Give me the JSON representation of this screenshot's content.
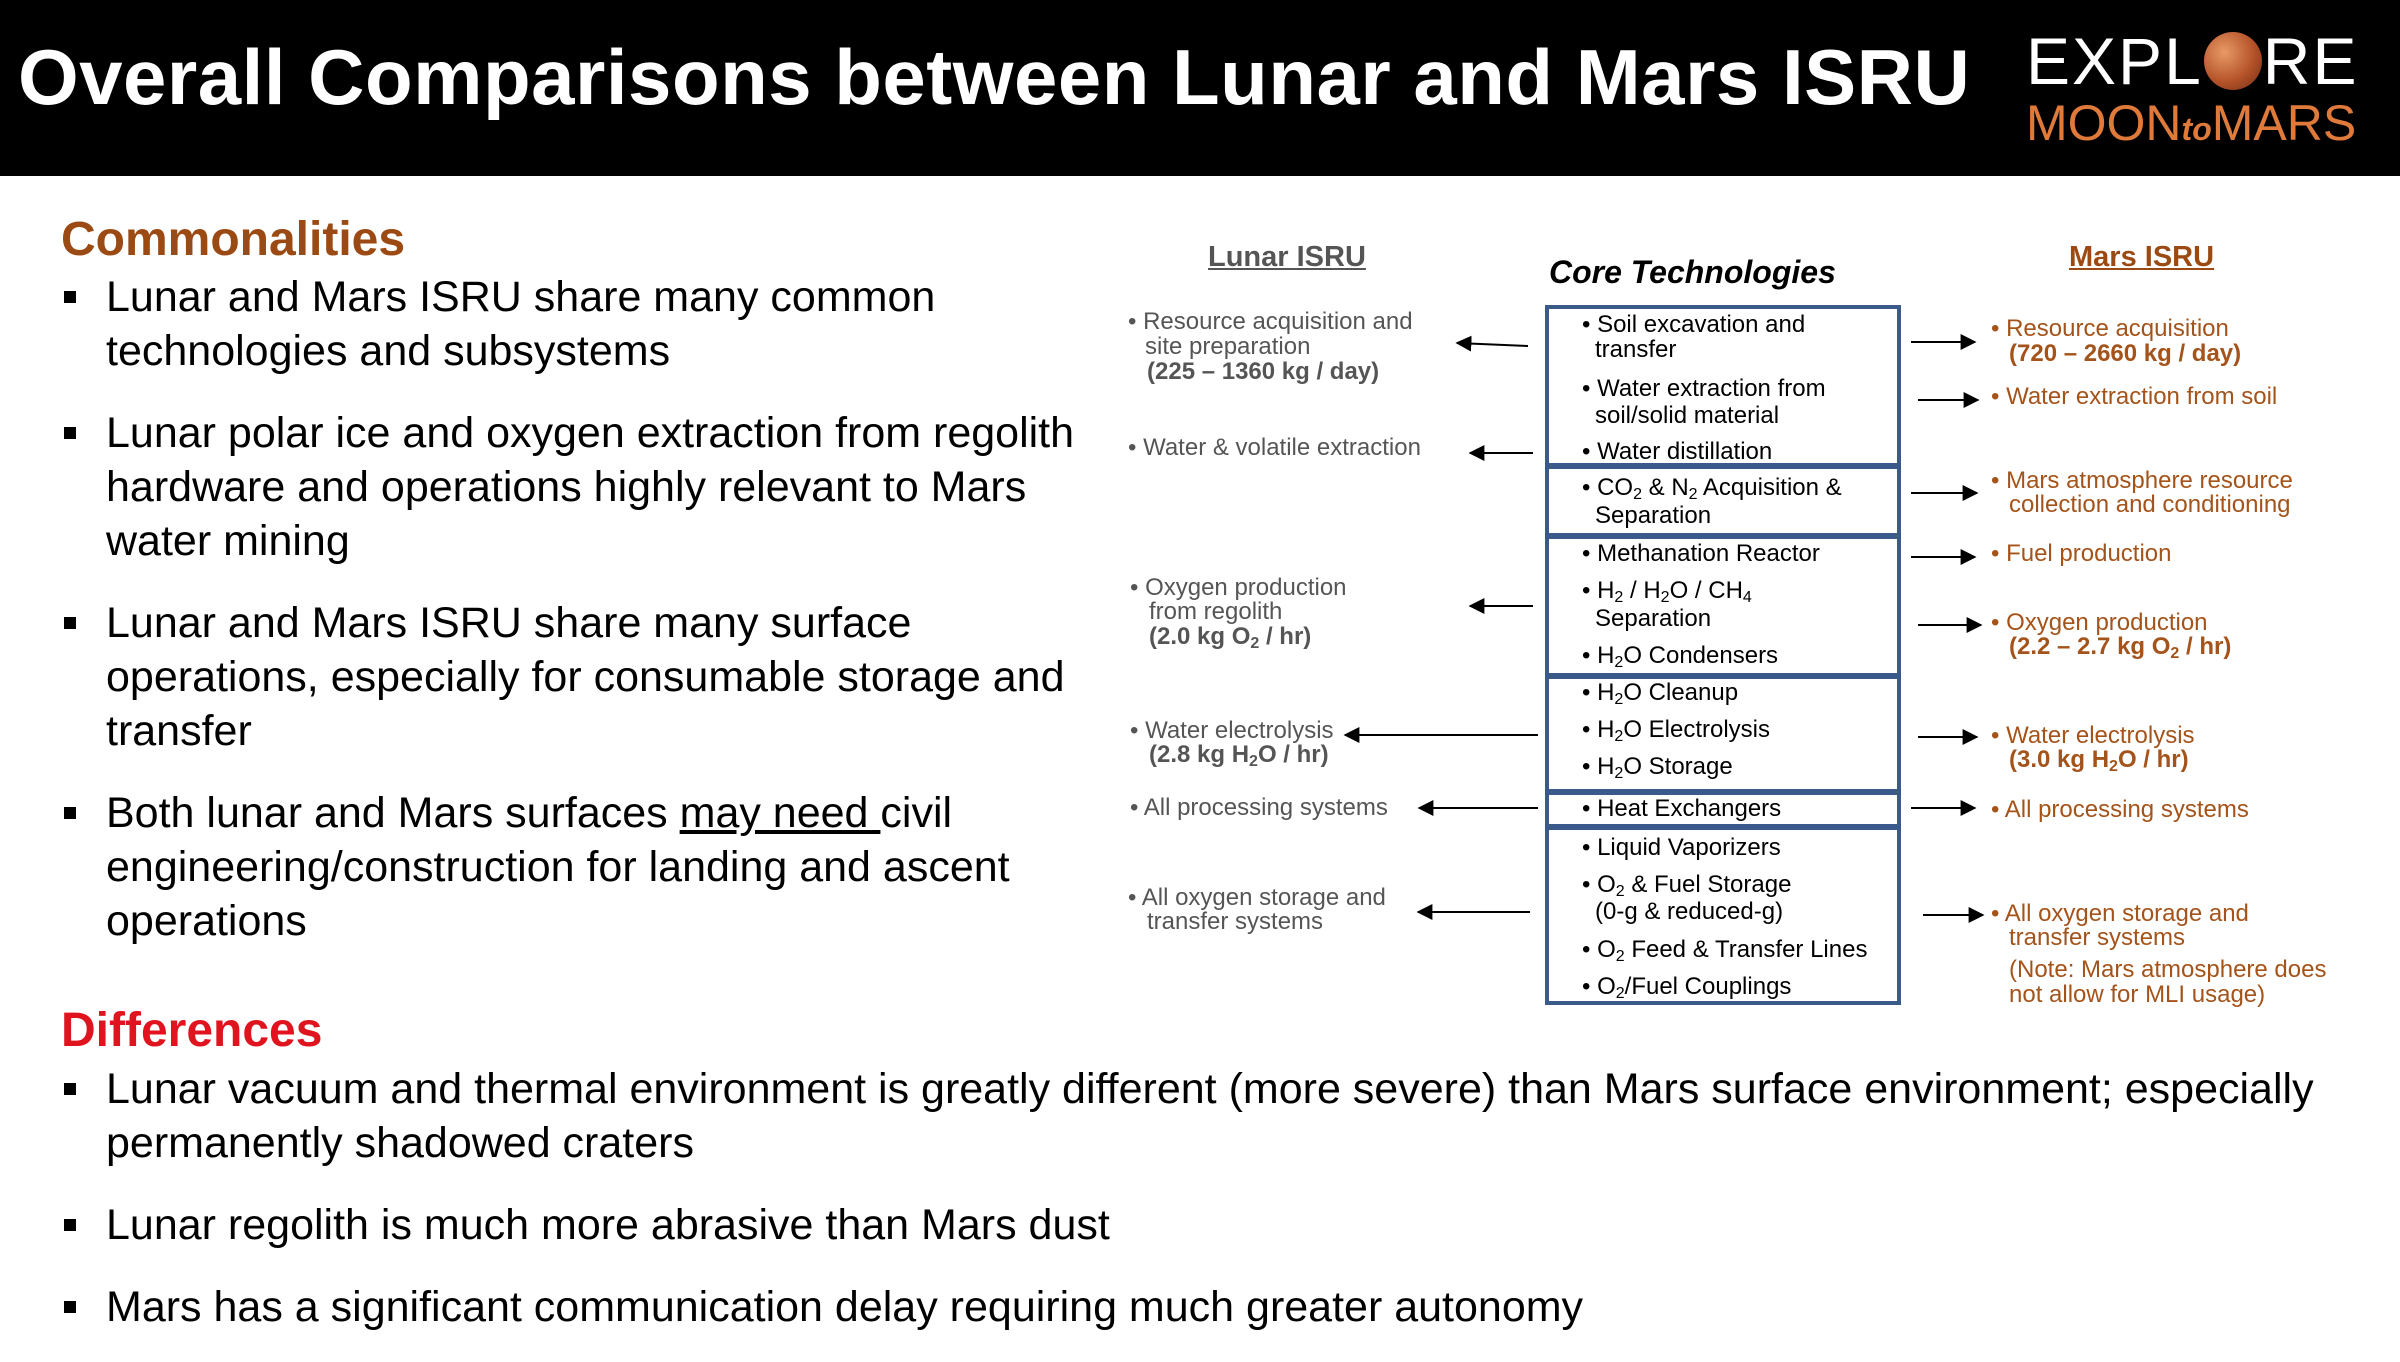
{
  "header": {
    "title": "Overall Comparisons between Lunar and Mars ISRU"
  },
  "logo": {
    "line1_a": "EXPL",
    "line1_b": "RE",
    "line2_a": "MOON",
    "line2_to": "to",
    "line2_b": "MARS"
  },
  "commonalities": {
    "heading": "Commonalities",
    "items": [
      "Lunar and Mars ISRU share many common technologies and subsystems",
      "Lunar polar ice and oxygen extraction from regolith hardware and operations highly relevant to Mars water mining",
      "Lunar and Mars ISRU share many surface operations, especially for consumable storage and transfer"
    ],
    "item4_a": "Both lunar and Mars surfaces ",
    "item4_u": "may need ",
    "item4_b": "civil engineering/construction for landing and ascent operations"
  },
  "differences": {
    "heading": "Differences",
    "items": [
      "Lunar vacuum and thermal environment is greatly different (more severe) than Mars surface environment; especially permanently shadowed craters",
      "Lunar regolith is much more abrasive than Mars dust",
      "Mars has a significant communication delay requiring much greater autonomy"
    ]
  },
  "diagram": {
    "lunar_heading": "Lunar ISRU",
    "core_heading": "Core Technologies",
    "mars_heading": "Mars ISRU",
    "core": {
      "c1a": "• Soil excavation and",
      "c1b": "transfer",
      "c2a": "• Water extraction from",
      "c2b": "soil/solid material",
      "c3": "• Water distillation",
      "c4b": "Separation",
      "c5": "• Methanation Reactor",
      "c6b": "Separation",
      "c11": "• Heat Exchangers",
      "c12": "• Liquid Vaporizers",
      "c13b": "(0-g & reduced-g)"
    },
    "lunar": {
      "l1a": "• Resource acquisition and",
      "l1b": "site preparation",
      "l1c": "(225 – 1360 kg / day)",
      "l2": "• Water & volatile extraction",
      "l3a": "• Oxygen production",
      "l3b": "from regolith",
      "l5": "• All processing systems",
      "l6a": "• All oxygen storage and",
      "l6b": "transfer systems"
    },
    "mars": {
      "m1a": "• Resource acquisition",
      "m1b": "(720 – 2660 kg / day)",
      "m2": "• Water extraction from soil",
      "m3a": "• Mars atmosphere resource",
      "m3b": "collection and conditioning",
      "m4": "• Fuel production",
      "m5a": "• Oxygen production",
      "m7": "• All processing systems",
      "m8a": "• All oxygen storage and",
      "m8b": "transfer systems",
      "m8c": "(Note: Mars atmosphere does",
      "m8d": "not allow for MLI usage)"
    }
  }
}
